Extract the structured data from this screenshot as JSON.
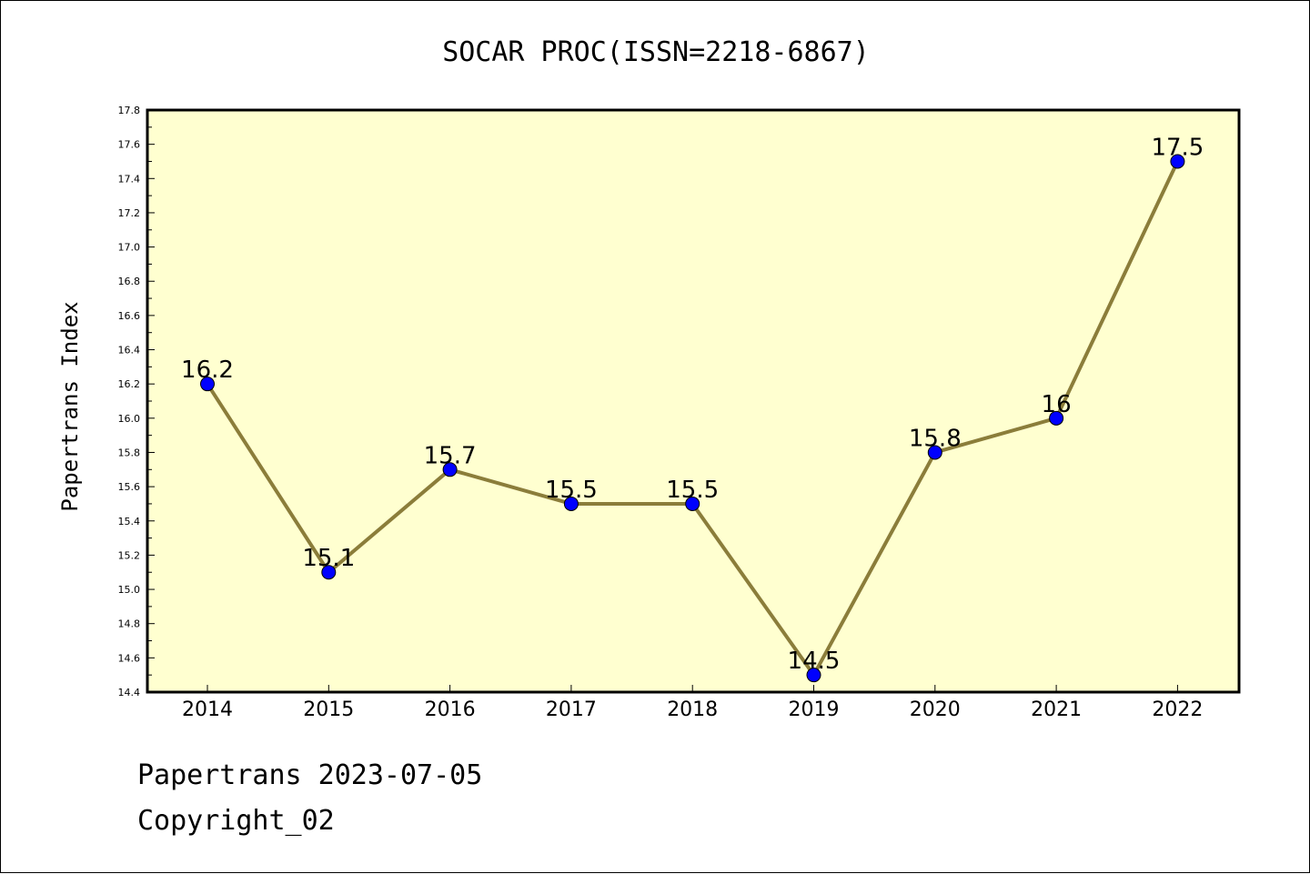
{
  "chart_data": {
    "type": "line",
    "title": "SOCAR PROC(ISSN=2218-6867)",
    "xlabel": "",
    "ylabel": "Papertrans Index",
    "categories": [
      "2014",
      "2015",
      "2016",
      "2017",
      "2018",
      "2019",
      "2020",
      "2021",
      "2022"
    ],
    "series": [
      {
        "values": [
          16.2,
          15.1,
          15.7,
          15.5,
          15.5,
          14.5,
          15.8,
          16.0,
          17.5
        ],
        "labels": [
          "16.2",
          "15.1",
          "15.7",
          "15.5",
          "15.5",
          "14.5",
          "15.8",
          "16",
          "17.5"
        ]
      }
    ],
    "ylim": [
      14.4,
      17.8
    ],
    "yticks": [
      "14.4",
      "14.6",
      "14.8",
      "15.0",
      "15.2",
      "15.4",
      "15.6",
      "15.8",
      "16.0",
      "16.2",
      "16.4",
      "16.6",
      "16.8",
      "17.0",
      "17.2",
      "17.4",
      "17.6",
      "17.8"
    ],
    "grid": false,
    "legend": "none",
    "colors": {
      "plot_background": "#ffffd0",
      "line": "#8b7d3a",
      "marker": "#0000ff"
    }
  },
  "footer": {
    "line1": "Papertrans 2023-07-05",
    "line2": "Copyright_02"
  }
}
